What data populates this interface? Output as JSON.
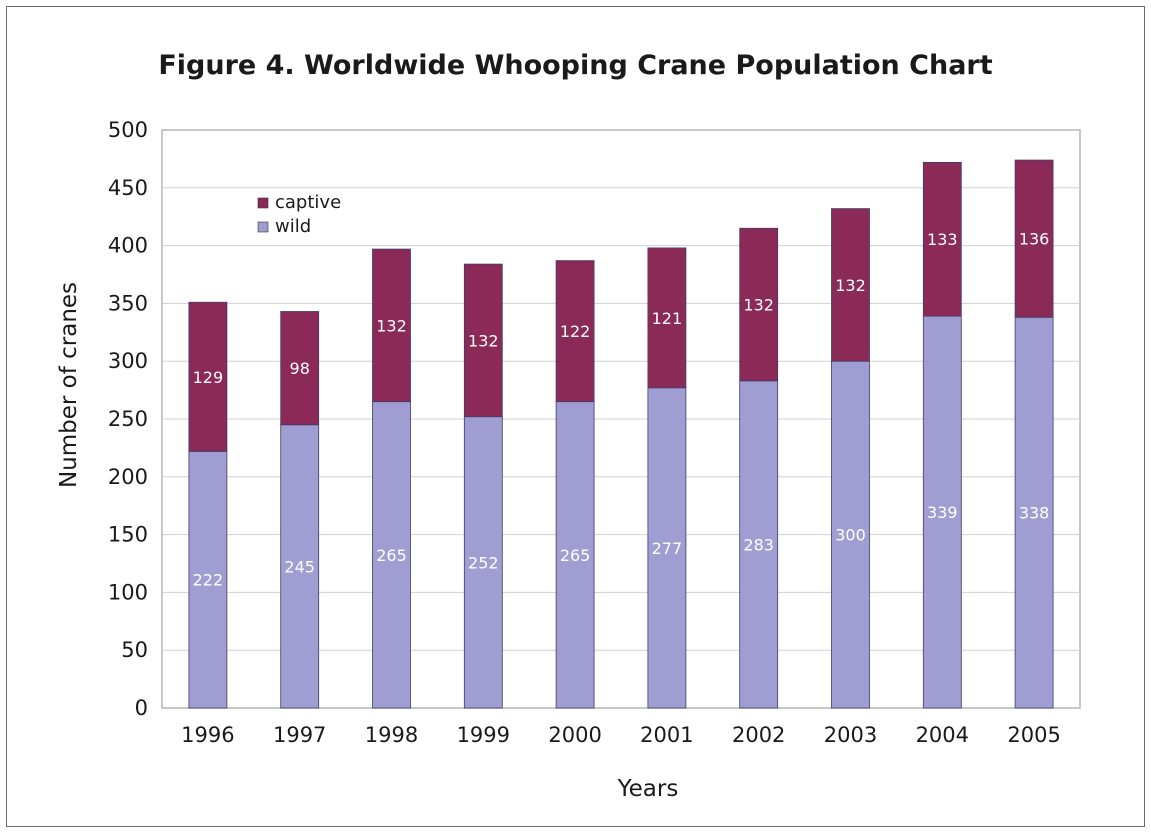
{
  "chart_data": {
    "type": "bar",
    "stacked": true,
    "title": "Figure 4. Worldwide Whooping Crane Population Chart",
    "xlabel": "Years",
    "ylabel": "Number of cranes",
    "categories": [
      "1996",
      "1997",
      "1998",
      "1999",
      "2000",
      "2001",
      "2002",
      "2003",
      "2004",
      "2005"
    ],
    "series": [
      {
        "name": "wild",
        "color": "#9f9dd1",
        "values": [
          222,
          245,
          265,
          252,
          265,
          277,
          283,
          300,
          339,
          338
        ],
        "labels": [
          "222",
          "245",
          "265",
          "252",
          "265",
          "277",
          "283",
          "300",
          "339",
          "338"
        ]
      },
      {
        "name": "captive",
        "color": "#8b2a57",
        "values": [
          129,
          98,
          132,
          132,
          122,
          121,
          132,
          132,
          133,
          136
        ],
        "labels": [
          "129",
          "98",
          "132",
          "132",
          "122",
          "121",
          "132",
          "132",
          "133",
          "136"
        ]
      }
    ],
    "ylim": [
      0,
      500
    ],
    "yticks": [
      "0",
      "50",
      "100",
      "150",
      "200",
      "250",
      "300",
      "350",
      "400",
      "450",
      "500"
    ],
    "grid": true,
    "legend": {
      "position": "top-left",
      "entries": [
        "captive",
        "wild"
      ]
    }
  }
}
